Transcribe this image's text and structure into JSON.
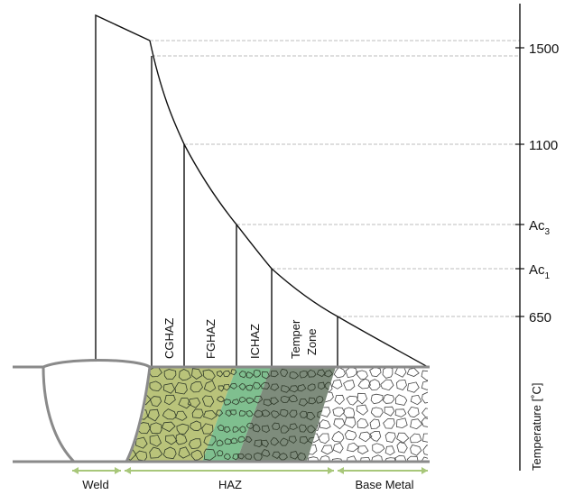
{
  "temperature_axis": {
    "title": "Temperature [˚C]",
    "ticks": [
      {
        "label": "1500",
        "sub": ""
      },
      {
        "label": "1100",
        "sub": ""
      },
      {
        "label": "Ac",
        "sub": "3"
      },
      {
        "label": "Ac",
        "sub": "1"
      },
      {
        "label": "650",
        "sub": ""
      }
    ]
  },
  "zones": [
    {
      "lines": [
        "CGHAZ"
      ]
    },
    {
      "lines": [
        "FGHAZ"
      ]
    },
    {
      "lines": [
        "ICHAZ"
      ]
    },
    {
      "lines": [
        "Temper",
        "Zone"
      ]
    }
  ],
  "regions": [
    {
      "label": "Weld"
    },
    {
      "label": "HAZ"
    },
    {
      "label": "Base Metal"
    }
  ],
  "colors": {
    "cghaz": "#b9c37a",
    "fghaz": "#7fbf8f",
    "ichaz": "#7e8c7c",
    "base": "#ffffff",
    "plate_outline": "#8a8a8a",
    "bracket": "#a8c77a",
    "curve": "#111111"
  }
}
